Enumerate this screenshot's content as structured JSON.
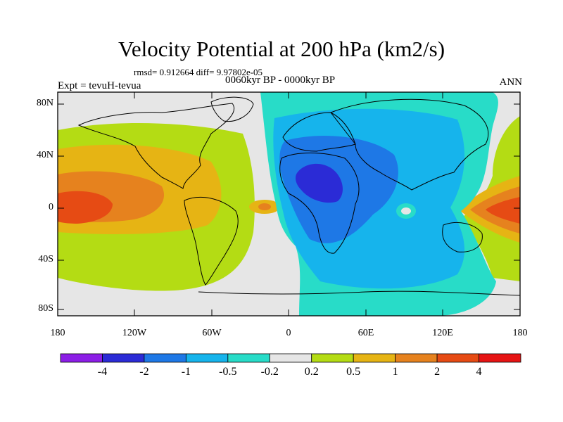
{
  "title": "Velocity Potential at 200 hPa (km2/s)",
  "stats_line": "rmsd= 0.912664 diff= 9.97802e-05",
  "period_label": "0060kyr BP - 0000kyr BP",
  "experiment_label": "Expt = tevuH-tevua",
  "season_label": "ANN",
  "y_axis_ticks": [
    {
      "label": "80N",
      "lat": 80
    },
    {
      "label": "40N",
      "lat": 40
    },
    {
      "label": "0",
      "lat": 0
    },
    {
      "label": "40S",
      "lat": -40
    },
    {
      "label": "80S",
      "lat": -80
    }
  ],
  "x_axis_ticks": [
    {
      "label": "180",
      "lon": -180
    },
    {
      "label": "120W",
      "lon": -120
    },
    {
      "label": "60W",
      "lon": -60
    },
    {
      "label": "0",
      "lon": 0
    },
    {
      "label": "60E",
      "lon": 60
    },
    {
      "label": "120E",
      "lon": 120
    },
    {
      "label": "180",
      "lon": 180
    }
  ],
  "colorbar": {
    "colors": [
      "#8c1ee6",
      "#2b2bd6",
      "#1e78e6",
      "#16b4ec",
      "#28dcc8",
      "#e6e6e6",
      "#b4dc14",
      "#e6b414",
      "#e6821e",
      "#e64b14",
      "#e61414"
    ],
    "labels": [
      "-4",
      "-2",
      "-1",
      "-0.5",
      "-0.2",
      "0.2",
      "0.5",
      "1",
      "2",
      "4"
    ]
  }
}
